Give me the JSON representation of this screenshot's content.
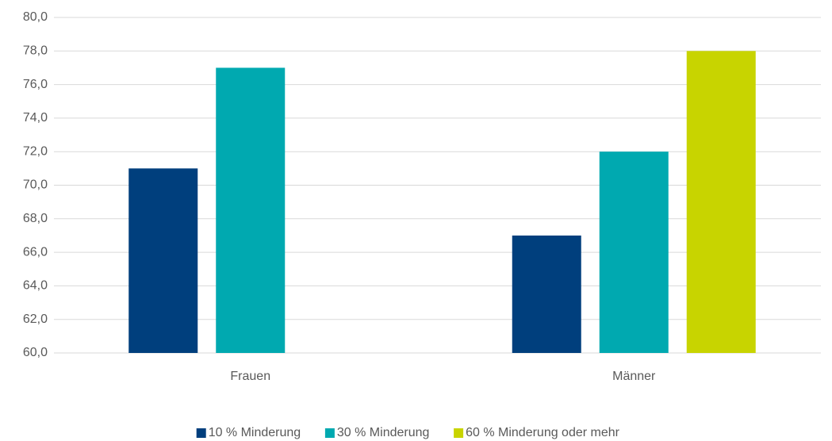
{
  "chart_data": {
    "type": "bar",
    "categories": [
      "Frauen",
      "Männer"
    ],
    "series": [
      {
        "name": "10 % Minderung",
        "color": "#003f7d",
        "values": [
          71,
          67
        ]
      },
      {
        "name": "30 % Minderung",
        "color": "#00a9b0",
        "values": [
          77,
          72
        ]
      },
      {
        "name": "60 % Minderung oder mehr",
        "color": "#c8d400",
        "values": [
          null,
          78
        ]
      }
    ],
    "ylim": [
      60,
      80
    ],
    "yticks": [
      {
        "value": 60,
        "label": "60,0"
      },
      {
        "value": 62,
        "label": "62,0"
      },
      {
        "value": 64,
        "label": "64,0"
      },
      {
        "value": 66,
        "label": "66,0"
      },
      {
        "value": 68,
        "label": "68,0"
      },
      {
        "value": 70,
        "label": "70,0"
      },
      {
        "value": 72,
        "label": "72,0"
      },
      {
        "value": 74,
        "label": "74,0"
      },
      {
        "value": 76,
        "label": "76,0"
      },
      {
        "value": 78,
        "label": "78,0"
      },
      {
        "value": 80,
        "label": "80,0"
      }
    ],
    "grid": true,
    "legend": "bottom"
  }
}
